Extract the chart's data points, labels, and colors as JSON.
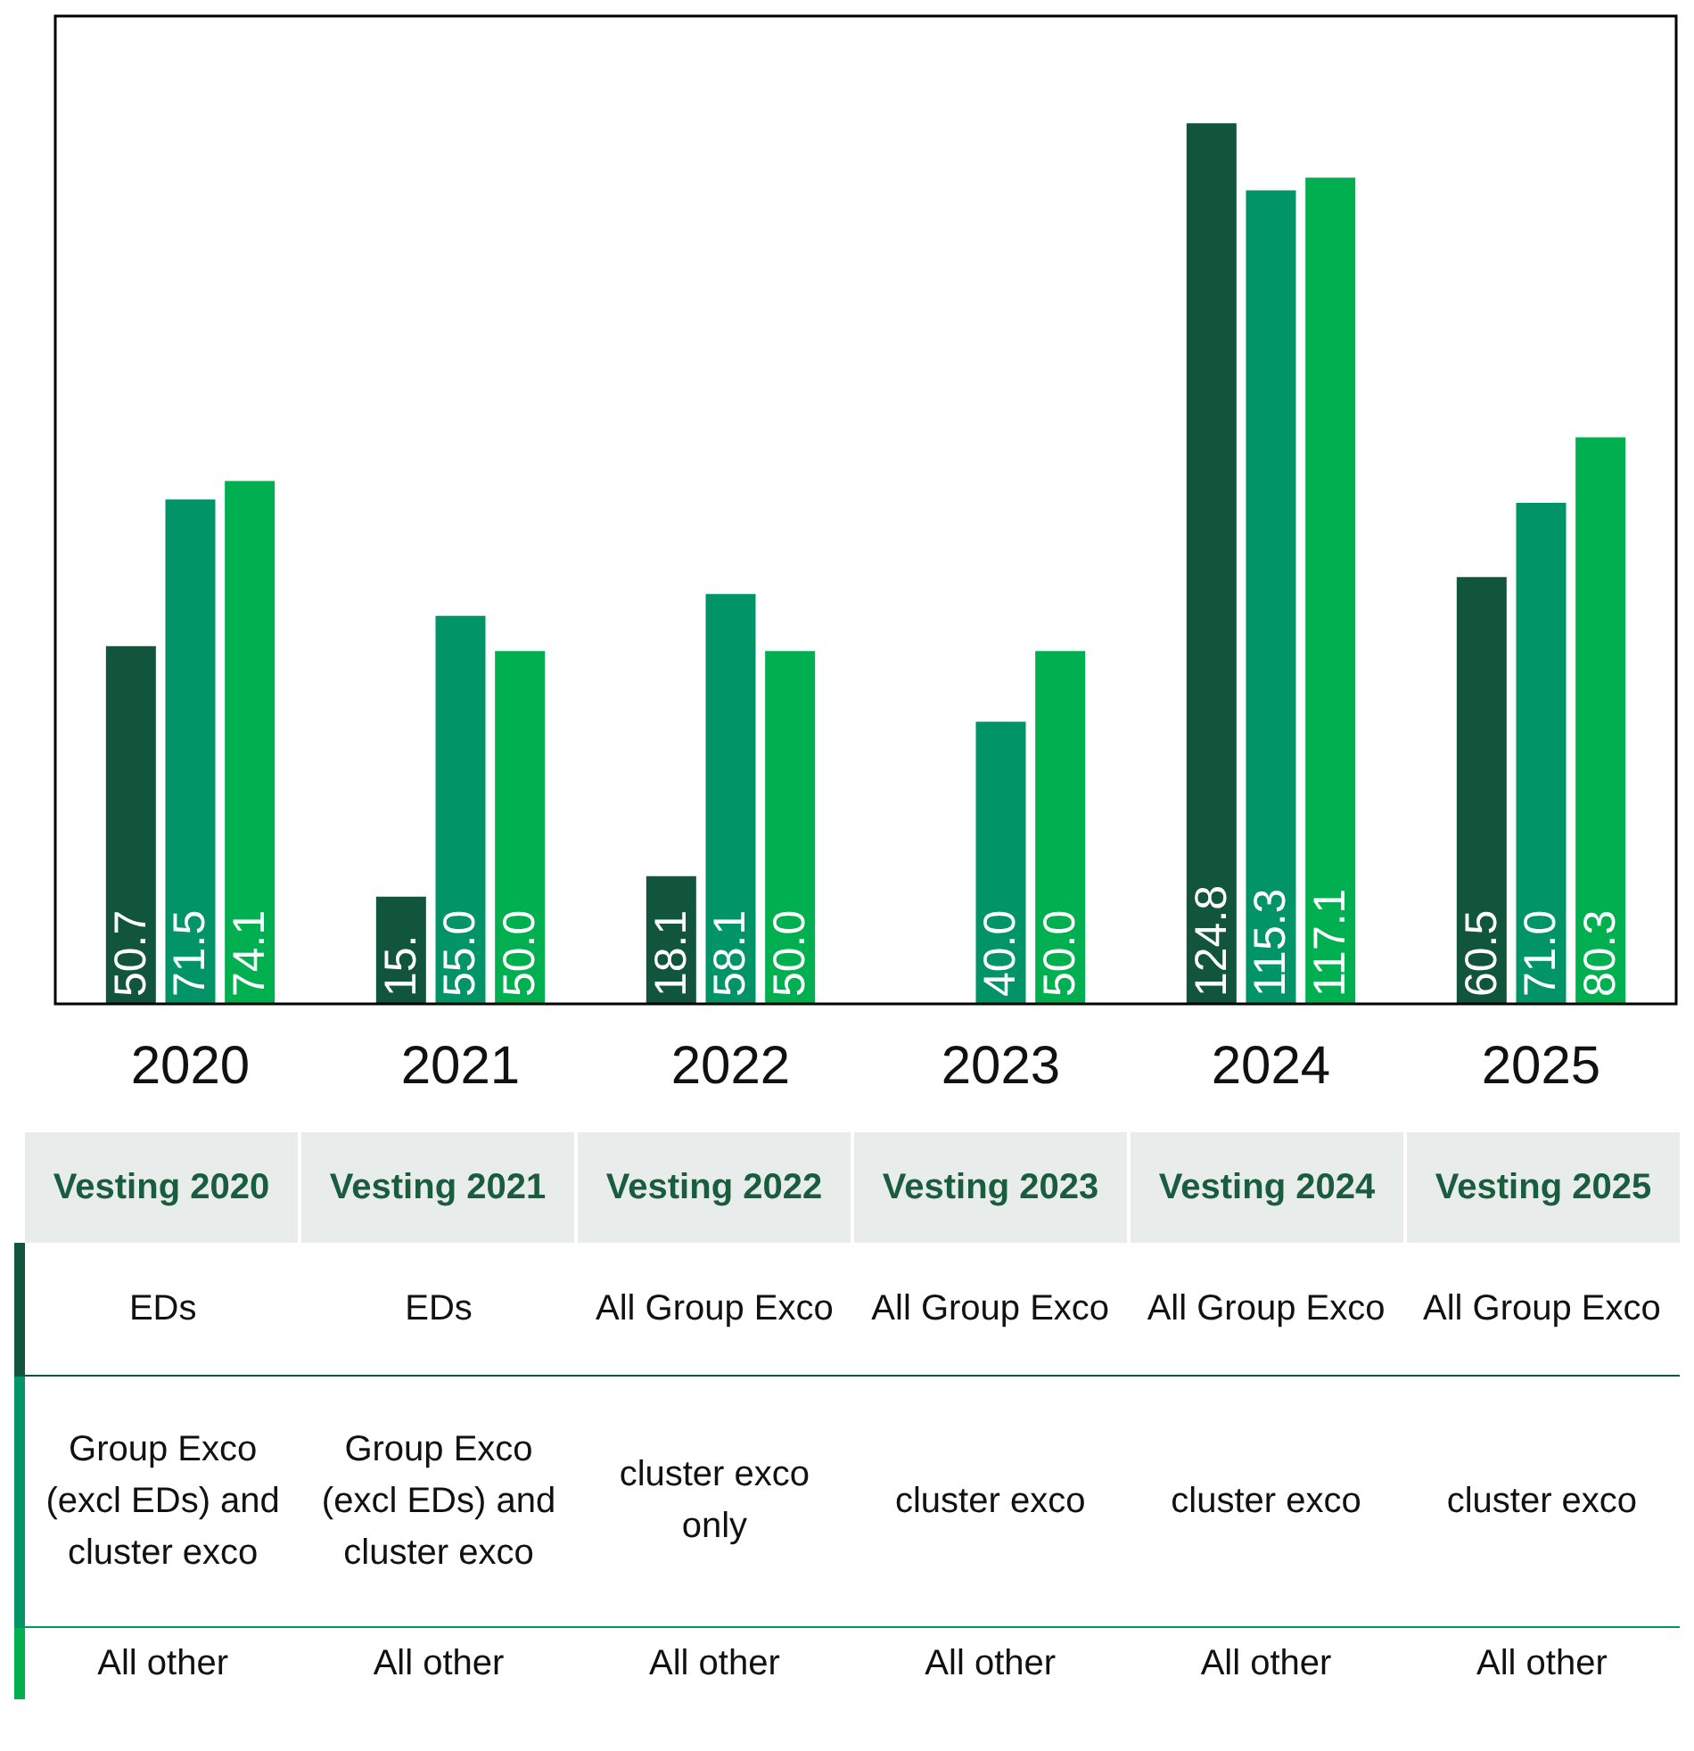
{
  "chart_data": {
    "type": "bar",
    "categories": [
      "2020",
      "2021",
      "2022",
      "2023",
      "2024",
      "2025"
    ],
    "series": [
      {
        "color": "#11553d",
        "values": [
          50.7,
          15.2,
          18.1,
          null,
          124.8,
          60.5
        ],
        "value_labels": [
          "50.7",
          "15.",
          "18.1",
          null,
          "124.8",
          "60.5"
        ]
      },
      {
        "color": "#009466",
        "values": [
          71.5,
          55.0,
          58.1,
          40.0,
          115.3,
          71.0
        ],
        "value_labels": [
          "71.5",
          "55.0",
          "58.1",
          "40.0",
          "115.3",
          "71.0"
        ]
      },
      {
        "color": "#00b050",
        "values": [
          74.1,
          50.0,
          50.0,
          50.0,
          117.1,
          80.3
        ],
        "value_labels": [
          "74.1",
          "50.0",
          "50.0",
          "50.0",
          "117.1",
          "80.3"
        ]
      }
    ],
    "ylim": [
      0,
      140
    ],
    "tick_labels": "x",
    "grid": false,
    "legend": false,
    "annotations": [
      "Vesting 2020",
      "Vesting 2021",
      "Vesting 2022",
      "Vesting 2023",
      "Vesting 2024",
      "Vesting 2025",
      "EDs",
      "EDs",
      "All Group Exco",
      "All Group Exco",
      "All Group Exco",
      "All Group Exco",
      "Group Exco (excl EDs) and cluster exco",
      "Group Exco (excl EDs) and cluster exco",
      "cluster exco only",
      "cluster exco",
      "cluster exco",
      "cluster exco",
      "All other",
      "All other",
      "All other",
      "All other",
      "All other",
      "All other"
    ]
  }
}
